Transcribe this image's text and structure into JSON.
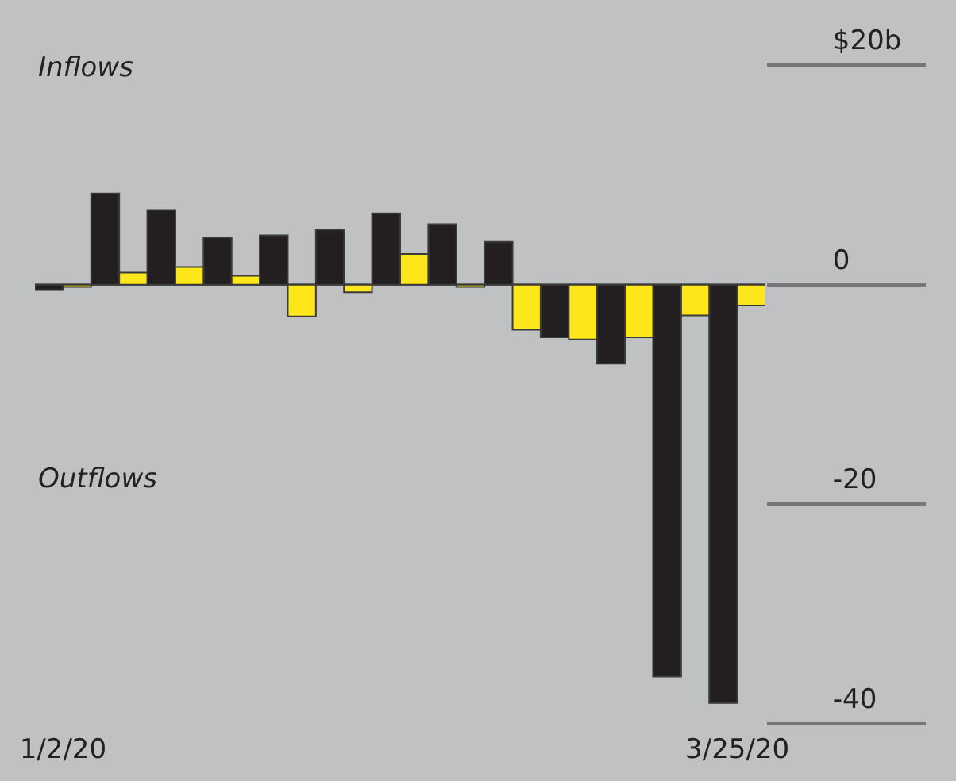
{
  "chart_data": {
    "type": "bar",
    "categories": [
      "1/2/20",
      null,
      null,
      null,
      null,
      null,
      null,
      null,
      null,
      null,
      null,
      null,
      "3/25/20"
    ],
    "series": [
      {
        "color": "#231f20",
        "values": [
          -0.5,
          8.3,
          6.8,
          4.3,
          4.5,
          5.0,
          6.5,
          5.5,
          3.9,
          -4.8,
          -7.2,
          -35.7,
          -38.1
        ]
      },
      {
        "color": "#fde619",
        "values": [
          -0.2,
          1.1,
          1.6,
          0.8,
          -2.9,
          -0.7,
          2.8,
          -0.2,
          -4.1,
          -5.0,
          -4.8,
          -2.8,
          -1.9
        ]
      }
    ],
    "ylim": [
      -40,
      20
    ],
    "yticks": [
      {
        "value": 20,
        "label": "$20b"
      },
      0,
      -20,
      -40
    ],
    "annotations": [
      "Inflows",
      "Outflows"
    ]
  }
}
